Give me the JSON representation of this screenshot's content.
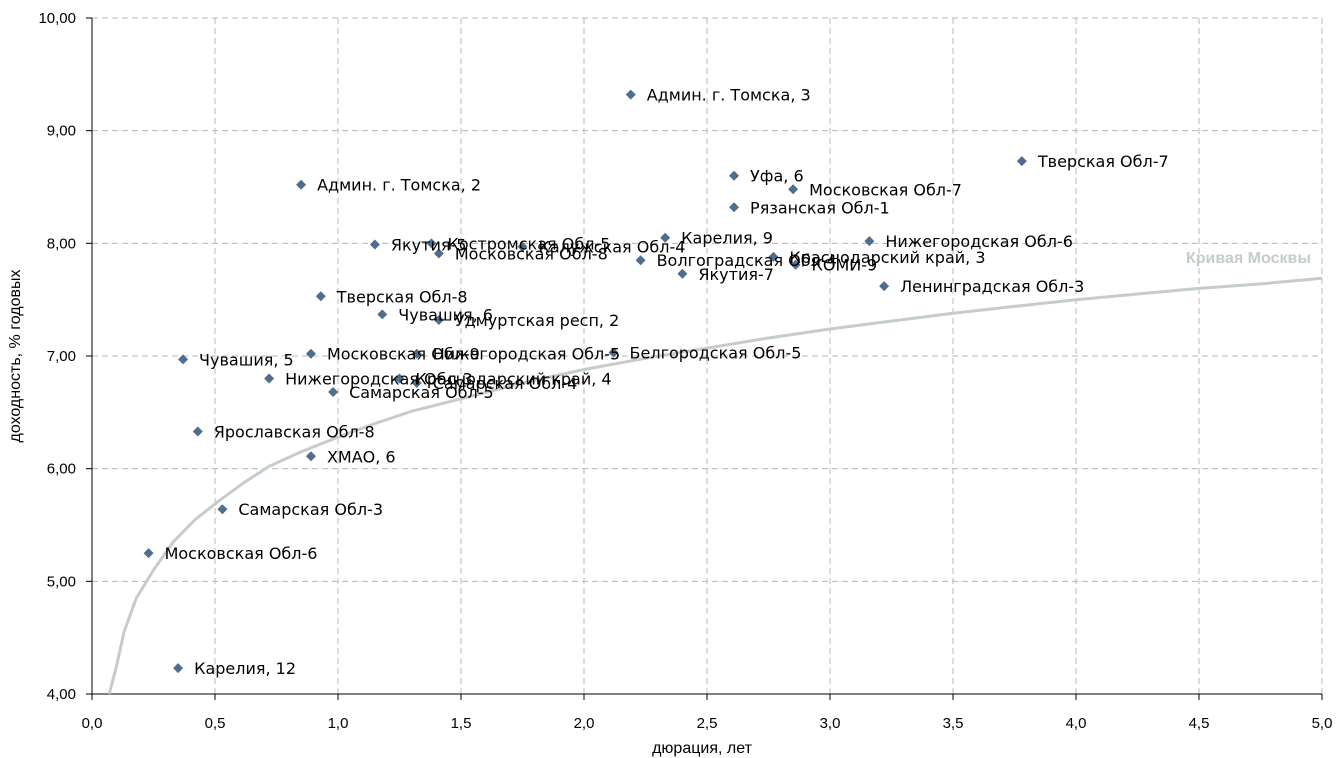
{
  "chart_data": {
    "type": "scatter",
    "xlabel": "дюрация, лет",
    "ylabel": "доходность, % годовых",
    "xlim": [
      0,
      5
    ],
    "ylim": [
      4,
      10
    ],
    "x_ticks": [
      "0,0",
      "0,5",
      "1,0",
      "1,5",
      "2,0",
      "2,5",
      "3,0",
      "3,5",
      "4,0",
      "4,5",
      "5,0"
    ],
    "y_ticks": [
      "4,00",
      "5,00",
      "6,00",
      "7,00",
      "8,00",
      "9,00",
      "10,00"
    ],
    "grid": true,
    "marker_color": "#4F6D8C",
    "curve_color": "#C4CCCC",
    "points": [
      {
        "x": 2.19,
        "y": 9.32,
        "label": "Админ. г. Томска, 3"
      },
      {
        "x": 3.78,
        "y": 8.73,
        "label": "Тверская Обл-7"
      },
      {
        "x": 0.85,
        "y": 8.52,
        "label": "Админ. г. Томска, 2"
      },
      {
        "x": 2.61,
        "y": 8.6,
        "label": "Уфа, 6"
      },
      {
        "x": 2.85,
        "y": 8.48,
        "label": "Московская Обл-7"
      },
      {
        "x": 2.61,
        "y": 8.32,
        "label": "Рязанская Обл-1"
      },
      {
        "x": 1.15,
        "y": 7.99,
        "label": "Якутия-5"
      },
      {
        "x": 1.38,
        "y": 8.0,
        "label": "Костромская Обл-5"
      },
      {
        "x": 1.75,
        "y": 7.97,
        "label": "Калужская Обл-4"
      },
      {
        "x": 1.41,
        "y": 7.91,
        "label": "Московская Обл-8"
      },
      {
        "x": 2.33,
        "y": 8.05,
        "label": "Карелия, 9"
      },
      {
        "x": 3.16,
        "y": 8.02,
        "label": "Нижегородская Обл-6"
      },
      {
        "x": 2.23,
        "y": 7.85,
        "label": "Волгоградская Обл-4"
      },
      {
        "x": 2.77,
        "y": 7.88,
        "label": "Краснодарский край, 3"
      },
      {
        "x": 2.86,
        "y": 7.81,
        "label": "КОМИ-9"
      },
      {
        "x": 2.4,
        "y": 7.73,
        "label": "Якутия-7"
      },
      {
        "x": 3.22,
        "y": 7.62,
        "label": "Ленинградская Обл-3"
      },
      {
        "x": 0.93,
        "y": 7.53,
        "label": "Тверская Обл-8"
      },
      {
        "x": 1.18,
        "y": 7.37,
        "label": "Чувашия, 6"
      },
      {
        "x": 1.41,
        "y": 7.32,
        "label": "Удмуртская респ, 2"
      },
      {
        "x": 0.37,
        "y": 6.97,
        "label": "Чувашия, 5"
      },
      {
        "x": 0.89,
        "y": 7.02,
        "label": "Московская Обл-9"
      },
      {
        "x": 1.32,
        "y": 7.02,
        "label": "Нижегородская Обл-5"
      },
      {
        "x": 2.12,
        "y": 7.03,
        "label": "Белгородская Обл-5"
      },
      {
        "x": 0.72,
        "y": 6.8,
        "label": "Нижегородская Обл-3"
      },
      {
        "x": 1.25,
        "y": 6.8,
        "label": "Краснодарский край, 4"
      },
      {
        "x": 1.32,
        "y": 6.76,
        "label": "Самарская Обл-4"
      },
      {
        "x": 0.98,
        "y": 6.68,
        "label": "Самарская Обл-5"
      },
      {
        "x": 0.43,
        "y": 6.33,
        "label": "Ярославская Обл-8"
      },
      {
        "x": 0.89,
        "y": 6.11,
        "label": "ХМАО, 6"
      },
      {
        "x": 0.53,
        "y": 5.64,
        "label": "Самарская Обл-3"
      },
      {
        "x": 0.23,
        "y": 5.25,
        "label": "Московская Обл-6"
      },
      {
        "x": 0.35,
        "y": 4.23,
        "label": "Карелия, 12"
      }
    ],
    "curve": {
      "name": "Кривая Москвы",
      "points": [
        [
          0.07,
          4.0
        ],
        [
          0.1,
          4.25
        ],
        [
          0.13,
          4.55
        ],
        [
          0.18,
          4.85
        ],
        [
          0.25,
          5.1
        ],
        [
          0.33,
          5.35
        ],
        [
          0.42,
          5.55
        ],
        [
          0.52,
          5.72
        ],
        [
          0.62,
          5.88
        ],
        [
          0.72,
          6.02
        ],
        [
          0.85,
          6.15
        ],
        [
          1.0,
          6.28
        ],
        [
          1.15,
          6.4
        ],
        [
          1.3,
          6.51
        ],
        [
          1.5,
          6.62
        ],
        [
          1.75,
          6.76
        ],
        [
          2.0,
          6.88
        ],
        [
          2.25,
          6.98
        ],
        [
          2.5,
          7.07
        ],
        [
          2.75,
          7.16
        ],
        [
          3.0,
          7.24
        ],
        [
          3.25,
          7.31
        ],
        [
          3.5,
          7.38
        ],
        [
          3.75,
          7.44
        ],
        [
          4.0,
          7.5
        ],
        [
          4.25,
          7.55
        ],
        [
          4.5,
          7.6
        ],
        [
          4.75,
          7.64
        ],
        [
          5.0,
          7.69
        ]
      ]
    }
  }
}
